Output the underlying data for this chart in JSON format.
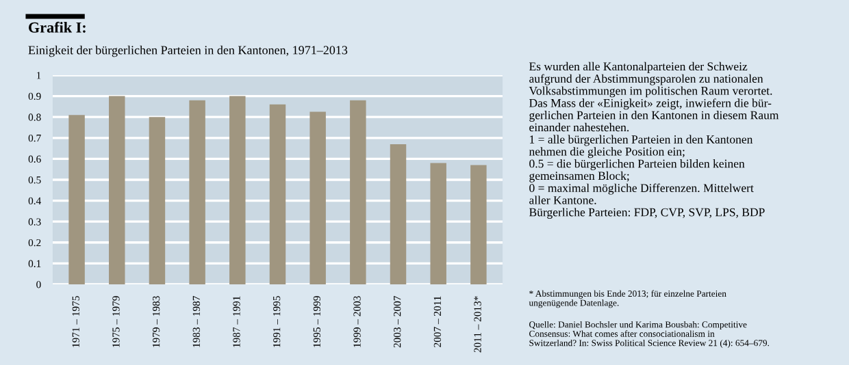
{
  "chart_data": {
    "type": "bar",
    "title": "Grafik I:",
    "subtitle": "Einigkeit der bürgerlichen Parteien in den Kantonen, 1971–2013",
    "categories": [
      "1971 – 1975",
      "1975 – 1979",
      "1979 – 1983",
      "1983 – 1987",
      "1987 – 1991",
      "1991 – 1995",
      "1995 – 1999",
      "1999 – 2003",
      "2003 – 2007",
      "2007 – 2011",
      "2011 – 2013*"
    ],
    "values": [
      0.81,
      0.9,
      0.8,
      0.88,
      0.9,
      0.86,
      0.825,
      0.88,
      0.67,
      0.58,
      0.57
    ],
    "color": "#a09680",
    "ylim": [
      0,
      1
    ],
    "yticks": [
      0,
      0.1,
      0.2,
      0.3,
      0.4,
      0.5,
      0.6,
      0.7,
      0.8,
      0.9,
      1
    ],
    "grid": "y",
    "annotations": [
      "Es wurden alle Kantonalparteien der Schweiz\naufgrund der Abstimmungsparolen zu nationalen\nVolksabstimmungen im politischen Raum verortet.\nDas Mass der «Einigkeit» zeigt, inwiefern die bür-\ngerlichen Parteien in den Kantonen in diesem Raum\neinander nahestehen.\n1 = alle bürgerlichen Parteien in den Kantonen\nnehmen die gleiche Position ein;\n0.5 = die bürgerlichen Parteien bilden keinen\ngemeinsamen Block;\n0 = maximal mögliche Differenzen. Mittelwert\naller Kantone.\nBürgerliche Parteien: FDP, CVP, SVP, LPS, BDP",
      "* Abstimmungen bis Ende 2013; für einzelne Parteien\nungenügende Datenlage.",
      "Quelle: Daniel Bochsler und Karima Bousbah: Competitive\nConsensus: What comes after consociationalism in\nSwitzerland? In: Swiss Political Science Review 21 (4): 654–679."
    ]
  }
}
